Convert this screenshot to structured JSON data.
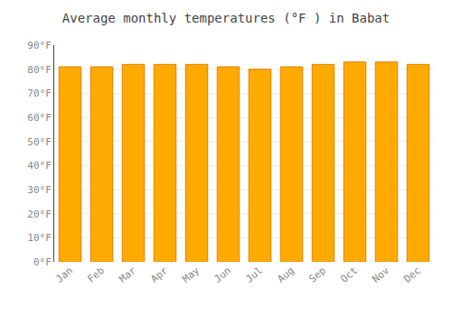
{
  "chart_data": {
    "type": "bar",
    "title": "Average monthly temperatures (°F ) in Babat",
    "categories": [
      "Jan",
      "Feb",
      "Mar",
      "Apr",
      "May",
      "Jun",
      "Jul",
      "Aug",
      "Sep",
      "Oct",
      "Nov",
      "Dec"
    ],
    "values": [
      81,
      81,
      82,
      82,
      82,
      81,
      80,
      81,
      82,
      83,
      83,
      82
    ],
    "color": "#FFAA00",
    "ylim": [
      0,
      90
    ],
    "yticks": [
      {
        "value": 0,
        "label": "0°F"
      },
      {
        "value": 10,
        "label": "10°F"
      },
      {
        "value": 20,
        "label": "20°F"
      },
      {
        "value": 30,
        "label": "30°F"
      },
      {
        "value": 40,
        "label": "40°F"
      },
      {
        "value": 50,
        "label": "50°F"
      },
      {
        "value": 60,
        "label": "60°F"
      },
      {
        "value": 70,
        "label": "70°F"
      },
      {
        "value": 80,
        "label": "80°F"
      },
      {
        "value": 90,
        "label": "90°F"
      }
    ],
    "grid": true
  }
}
